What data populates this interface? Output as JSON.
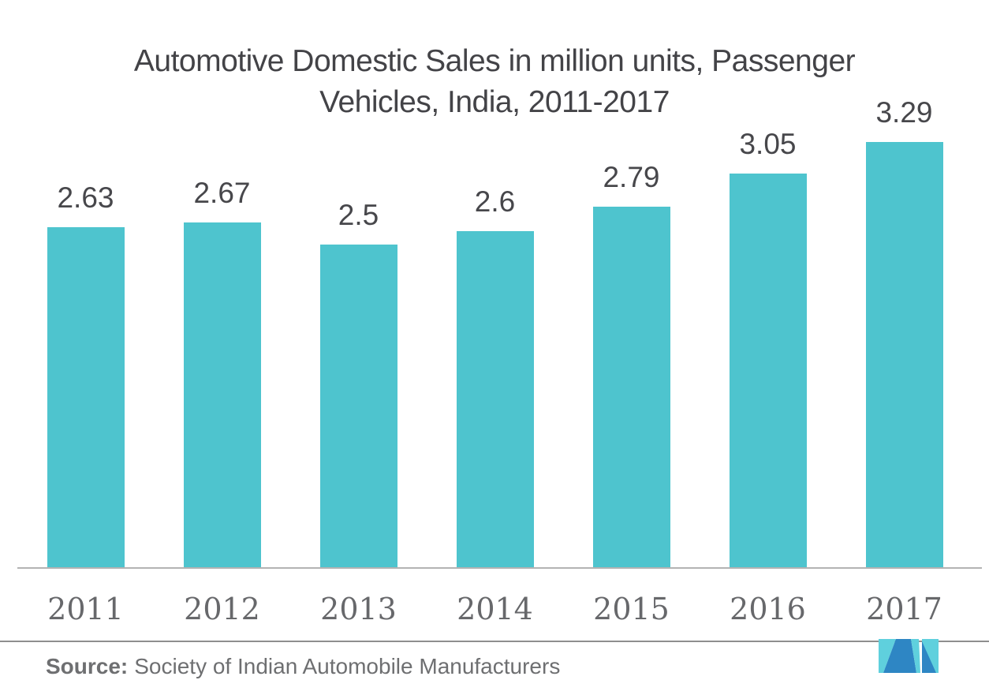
{
  "title": {
    "lines": [
      "Automotive Domestic Sales in million units, Passenger",
      "Vehicles, India, 2011-2017"
    ]
  },
  "chart_data": {
    "type": "bar",
    "title": "Automotive Domestic Sales in million units, Passenger Vehicles, India, 2011-2017",
    "categories": [
      "2011",
      "2012",
      "2013",
      "2014",
      "2015",
      "2016",
      "2017"
    ],
    "values": [
      2.63,
      2.67,
      2.5,
      2.6,
      2.79,
      3.05,
      3.29
    ],
    "value_labels": [
      "2.63",
      "2.67",
      "2.5",
      "2.6",
      "2.79",
      "3.05",
      "3.29"
    ],
    "unit": "million units",
    "xlabel": "",
    "ylabel": "",
    "ylim": [
      0,
      3.5
    ],
    "grid": false,
    "legend": false,
    "bar_color": "#4EC4CE",
    "data_label_position": "above-bar"
  },
  "source": {
    "label": "Source:",
    "text": "Society of Indian Automobile Manufacturers"
  },
  "logo": {
    "name": "mordor-intelligence-logo",
    "teal": "#5FD0DD",
    "blue": "#2E86C4"
  },
  "colors": {
    "background": "#FFFFFF",
    "title_text": "#434347",
    "value_label_text": "#47474B",
    "axis_label_text": "#67686B",
    "axis_line": "#B3B3B3",
    "divider_line": "#8E8E8E",
    "source_text": "#6E6F71",
    "bar": "#4EC4CE"
  }
}
